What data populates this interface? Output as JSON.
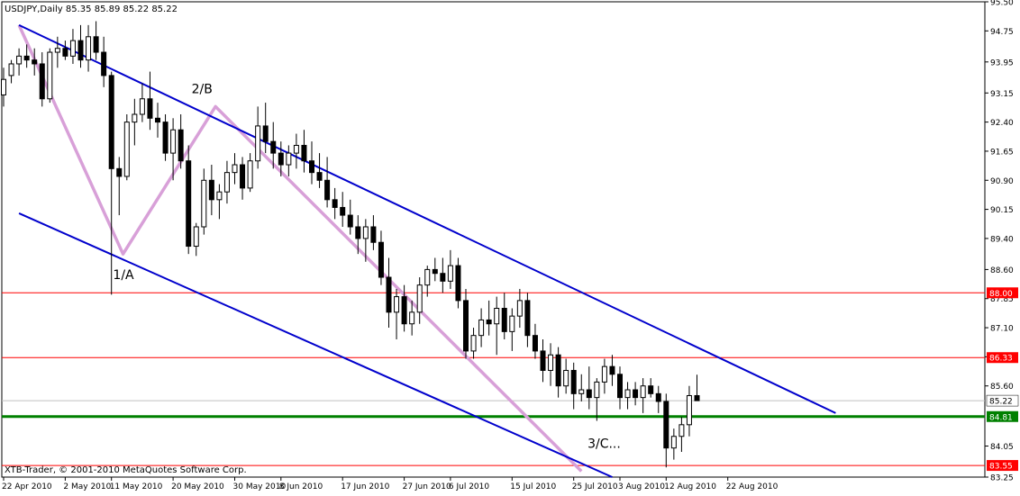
{
  "chart_data": {
    "type": "candlestick",
    "title": "USDJPY,Daily  85.35 85.89 85.22 85.22",
    "footer": "XTB-Trader, © 2001-2010 MetaQuotes Software Corp.",
    "ylim": [
      83.25,
      95.5
    ],
    "y_ticks": [
      95.5,
      94.75,
      93.95,
      93.15,
      92.4,
      91.65,
      90.9,
      90.15,
      89.4,
      88.6,
      87.85,
      87.1,
      86.35,
      85.6,
      84.05,
      83.25
    ],
    "x_tick_labels": [
      "22 Apr 2010",
      "2 May 2010",
      "11 May 2010",
      "20 May 2010",
      "30 May 2010",
      "8 Jun 2010",
      "17 Jun 2010",
      "27 Jun 2010",
      "6 Jul 2010",
      "15 Jul 2010",
      "25 Jul 2010",
      "3 Aug 2010",
      "12 Aug 2010",
      "22 Aug 2010"
    ],
    "x_tick_index": [
      0,
      8,
      14,
      22,
      30,
      36,
      44,
      52,
      58,
      66,
      74,
      80,
      86,
      94
    ],
    "candles_ohlc": [
      [
        93.1,
        93.8,
        92.8,
        93.5
      ],
      [
        93.6,
        94.0,
        93.4,
        93.9
      ],
      [
        93.9,
        94.3,
        93.6,
        94.1
      ],
      [
        94.1,
        94.4,
        93.8,
        94.0
      ],
      [
        94.0,
        94.3,
        93.6,
        93.9
      ],
      [
        93.9,
        94.2,
        92.8,
        93.0
      ],
      [
        93.0,
        94.3,
        92.9,
        94.2
      ],
      [
        94.2,
        94.6,
        93.8,
        94.3
      ],
      [
        94.3,
        94.5,
        94.0,
        94.1
      ],
      [
        94.1,
        94.8,
        93.9,
        94.5
      ],
      [
        94.5,
        94.9,
        93.8,
        94.0
      ],
      [
        94.0,
        94.9,
        93.7,
        94.6
      ],
      [
        94.6,
        95.0,
        94.0,
        94.2
      ],
      [
        94.2,
        94.6,
        93.3,
        93.6
      ],
      [
        93.6,
        93.7,
        87.95,
        91.2
      ],
      [
        91.2,
        91.5,
        90.0,
        91.0
      ],
      [
        91.0,
        92.6,
        90.9,
        92.4
      ],
      [
        92.4,
        93.0,
        91.8,
        92.6
      ],
      [
        92.6,
        93.4,
        92.4,
        93.0
      ],
      [
        93.0,
        93.7,
        92.2,
        92.5
      ],
      [
        92.5,
        92.9,
        92.0,
        92.4
      ],
      [
        92.4,
        92.6,
        91.4,
        91.6
      ],
      [
        91.6,
        92.5,
        90.9,
        92.2
      ],
      [
        92.2,
        92.6,
        91.2,
        91.4
      ],
      [
        91.4,
        91.8,
        89.0,
        89.2
      ],
      [
        89.2,
        89.8,
        88.95,
        89.7
      ],
      [
        89.7,
        91.2,
        89.5,
        90.9
      ],
      [
        90.9,
        91.3,
        90.0,
        90.4
      ],
      [
        90.4,
        90.8,
        89.9,
        90.6
      ],
      [
        90.6,
        91.4,
        90.3,
        91.1
      ],
      [
        91.1,
        91.6,
        90.8,
        91.3
      ],
      [
        91.3,
        91.5,
        90.4,
        90.7
      ],
      [
        90.7,
        91.6,
        90.6,
        91.4
      ],
      [
        91.4,
        92.8,
        91.2,
        92.3
      ],
      [
        92.3,
        92.9,
        91.6,
        91.9
      ],
      [
        91.9,
        92.4,
        91.2,
        91.6
      ],
      [
        91.6,
        91.9,
        91.0,
        91.3
      ],
      [
        91.3,
        91.8,
        91.0,
        91.6
      ],
      [
        91.6,
        92.1,
        91.2,
        91.8
      ],
      [
        91.8,
        92.2,
        91.1,
        91.4
      ],
      [
        91.4,
        91.9,
        90.8,
        91.1
      ],
      [
        91.1,
        91.6,
        90.7,
        90.9
      ],
      [
        90.9,
        91.5,
        90.2,
        90.4
      ],
      [
        90.4,
        90.7,
        89.9,
        90.2
      ],
      [
        90.2,
        90.6,
        89.7,
        90.0
      ],
      [
        90.0,
        90.4,
        89.5,
        89.7
      ],
      [
        89.7,
        90.0,
        89.0,
        89.4
      ],
      [
        89.4,
        89.9,
        88.8,
        89.7
      ],
      [
        89.7,
        90.0,
        89.1,
        89.3
      ],
      [
        89.3,
        89.6,
        88.2,
        88.4
      ],
      [
        88.4,
        88.9,
        87.1,
        87.5
      ],
      [
        87.5,
        88.1,
        86.8,
        87.9
      ],
      [
        87.9,
        88.2,
        87.0,
        87.2
      ],
      [
        87.2,
        87.8,
        86.9,
        87.5
      ],
      [
        87.5,
        88.4,
        87.2,
        88.2
      ],
      [
        88.2,
        88.7,
        87.9,
        88.6
      ],
      [
        88.6,
        88.9,
        88.3,
        88.5
      ],
      [
        88.5,
        88.9,
        88.0,
        88.3
      ],
      [
        88.3,
        89.1,
        88.1,
        88.7
      ],
      [
        88.7,
        88.9,
        87.6,
        87.8
      ],
      [
        87.8,
        88.1,
        86.3,
        86.5
      ],
      [
        86.5,
        87.1,
        86.3,
        86.9
      ],
      [
        86.9,
        87.6,
        86.6,
        87.3
      ],
      [
        87.3,
        87.8,
        86.9,
        87.2
      ],
      [
        87.2,
        87.9,
        86.4,
        87.6
      ],
      [
        87.6,
        88.0,
        86.8,
        87.0
      ],
      [
        87.0,
        87.6,
        86.5,
        87.4
      ],
      [
        87.4,
        88.1,
        87.1,
        87.8
      ],
      [
        87.8,
        88.0,
        86.6,
        86.9
      ],
      [
        86.9,
        87.2,
        86.3,
        86.5
      ],
      [
        86.5,
        86.8,
        85.7,
        86.0
      ],
      [
        86.0,
        86.7,
        85.6,
        86.4
      ],
      [
        86.4,
        86.6,
        85.3,
        85.6
      ],
      [
        85.6,
        86.3,
        85.4,
        86.0
      ],
      [
        86.0,
        86.2,
        85.0,
        85.4
      ],
      [
        85.4,
        85.9,
        85.2,
        85.5
      ],
      [
        85.5,
        86.1,
        85.0,
        85.3
      ],
      [
        85.3,
        85.8,
        84.7,
        85.7
      ],
      [
        85.7,
        86.3,
        85.4,
        86.1
      ],
      [
        86.1,
        86.4,
        85.6,
        85.9
      ],
      [
        85.9,
        86.1,
        85.0,
        85.3
      ],
      [
        85.3,
        85.7,
        85.0,
        85.5
      ],
      [
        85.5,
        85.7,
        85.1,
        85.3
      ],
      [
        85.3,
        85.8,
        84.9,
        85.6
      ],
      [
        85.6,
        85.8,
        85.3,
        85.4
      ],
      [
        85.4,
        85.6,
        84.9,
        85.2
      ],
      [
        85.2,
        85.4,
        83.5,
        84.0
      ],
      [
        84.0,
        84.5,
        83.7,
        84.3
      ],
      [
        84.3,
        84.8,
        83.9,
        84.6
      ],
      [
        84.6,
        85.6,
        84.3,
        85.35
      ],
      [
        85.35,
        85.89,
        85.22,
        85.22
      ]
    ],
    "price_lines": [
      {
        "value": 88.0,
        "label": "88.00",
        "color": "#ff0000",
        "style": "thin"
      },
      {
        "value": 86.33,
        "label": "86.33",
        "color": "#ff0000",
        "style": "thin"
      },
      {
        "value": 85.22,
        "label": "85.22",
        "color": "#c0c0c0",
        "style": "current"
      },
      {
        "value": 84.81,
        "label": "84.81",
        "color": "#008000",
        "style": "thick"
      },
      {
        "value": 83.55,
        "label": "83.55",
        "color": "#ff0000",
        "style": "thin"
      }
    ],
    "channel_lines": [
      {
        "from": [
          2,
          90.05
        ],
        "to": [
          79,
          83.25
        ],
        "color": "#0000cc"
      },
      {
        "from": [
          2,
          94.9
        ],
        "to": [
          108,
          84.9
        ],
        "color": "#0000cc"
      }
    ],
    "wave_path": {
      "color": "#d8a0d8",
      "points": [
        [
          2,
          94.9
        ],
        [
          15.5,
          89.0
        ],
        [
          27.5,
          92.8
        ],
        [
          75,
          83.4
        ]
      ]
    },
    "annotations": [
      {
        "text": "2/B",
        "x": 24.4,
        "y": 93.15
      },
      {
        "text": "1/A",
        "x": 14.2,
        "y": 88.35
      },
      {
        "text": "3/C...",
        "x": 75.8,
        "y": 84.0
      }
    ],
    "colors": {
      "bull": "#ffffff",
      "bear": "#000000",
      "wick": "#000000",
      "grid_frame": "#000000"
    }
  }
}
